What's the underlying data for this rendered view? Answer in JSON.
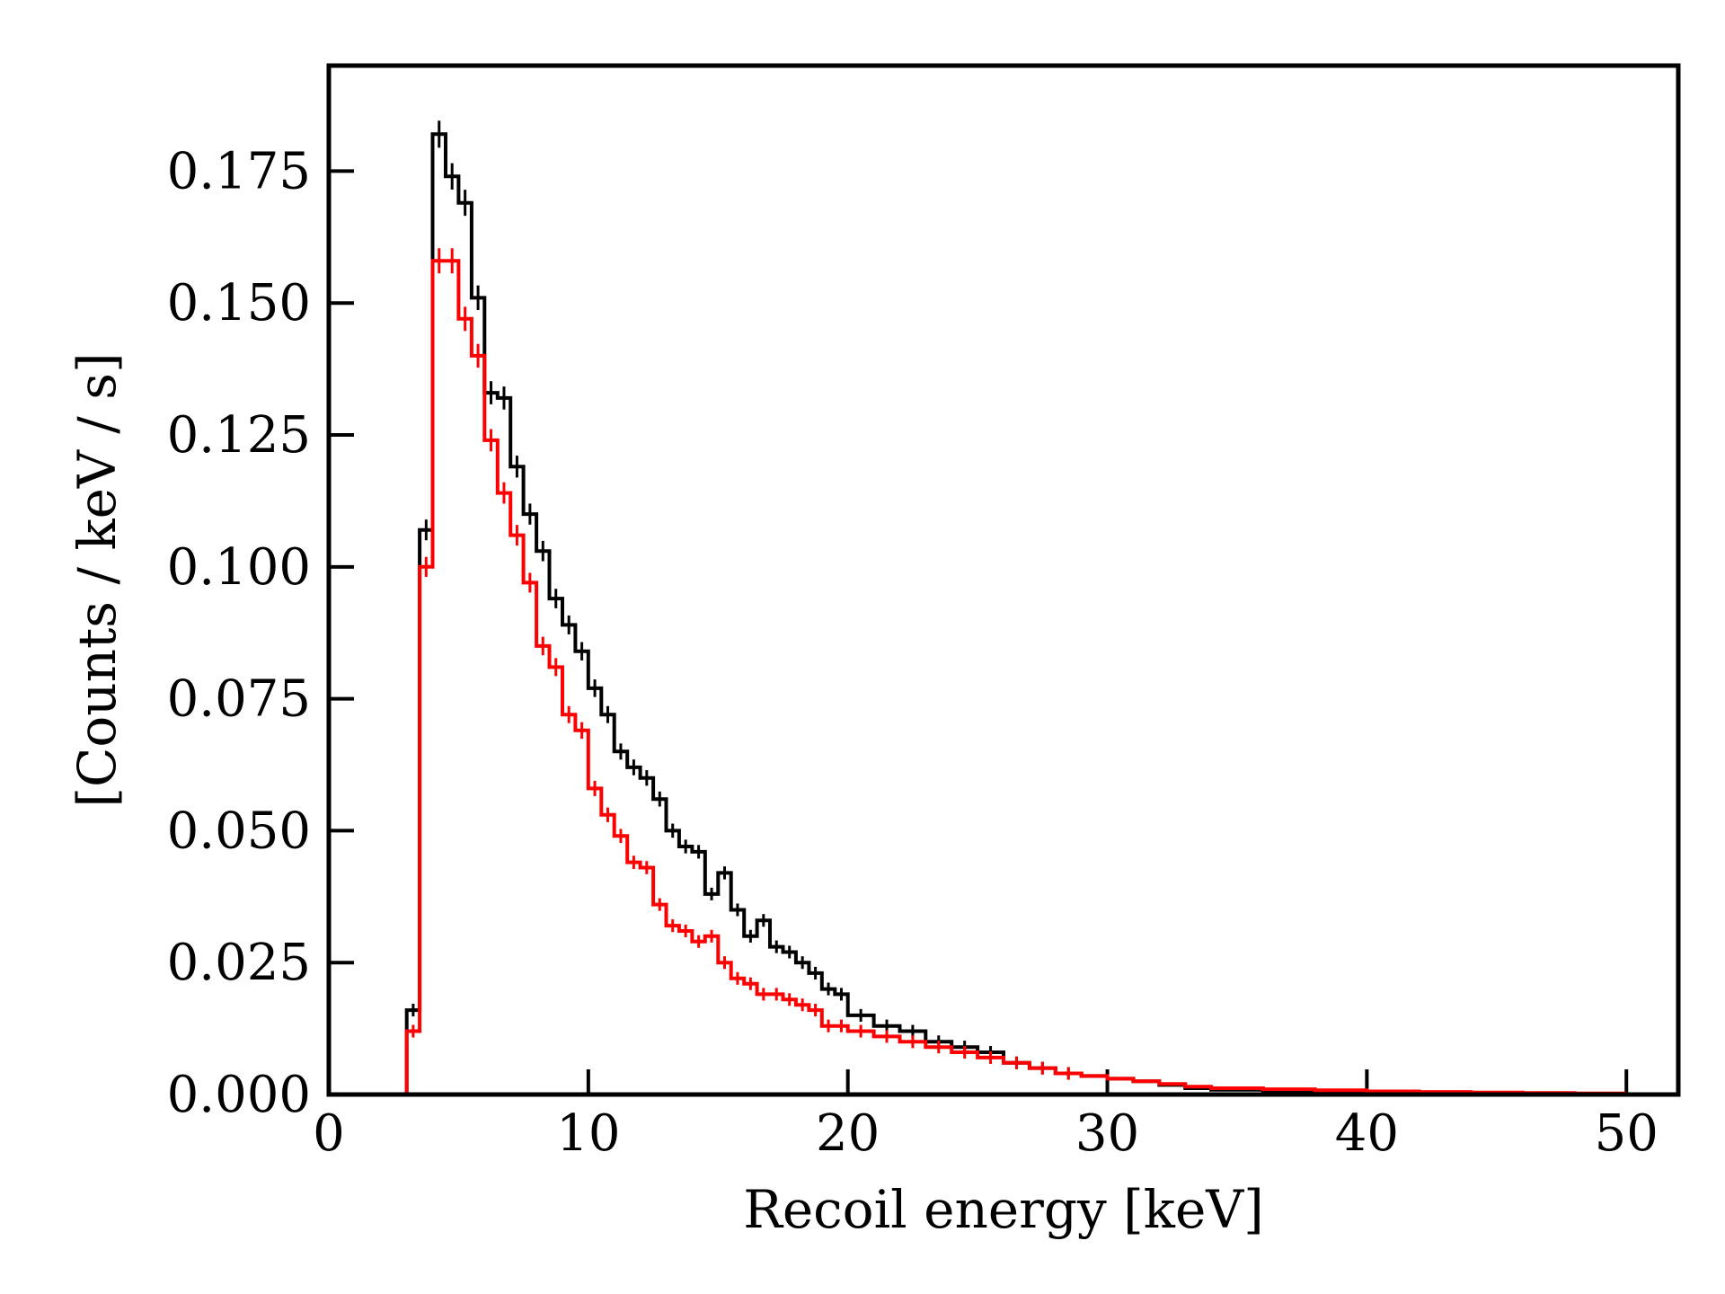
{
  "chart_data": {
    "type": "line",
    "style": "step-histogram",
    "title": "",
    "xlabel": "Recoil energy [keV]",
    "ylabel": "[Counts / keV / s]",
    "xlim": [
      0,
      52
    ],
    "ylim": [
      0,
      0.195
    ],
    "xticks": [
      0,
      10,
      20,
      30,
      40,
      50
    ],
    "xtick_labels": [
      "0",
      "10",
      "20",
      "30",
      "40",
      "50"
    ],
    "yticks": [
      0,
      0.025,
      0.05,
      0.075,
      0.1,
      0.125,
      0.15,
      0.175
    ],
    "ytick_labels": [
      "0.000",
      "0.025",
      "0.050",
      "0.075",
      "0.100",
      "0.125",
      "0.150",
      "0.175"
    ],
    "grid": false,
    "bin_edges": [
      3,
      3.5,
      4,
      4.5,
      5,
      5.5,
      6,
      6.5,
      7,
      7.5,
      8,
      8.5,
      9,
      9.5,
      10,
      10.5,
      11,
      11.5,
      12,
      12.5,
      13,
      13.5,
      14,
      14.5,
      15,
      15.5,
      16,
      16.5,
      17,
      17.5,
      18,
      18.5,
      19,
      19.5,
      20,
      21,
      22,
      23,
      24,
      25,
      26,
      27,
      28,
      29,
      30,
      31,
      32,
      33,
      34,
      36,
      38,
      40,
      42,
      44,
      46,
      48,
      50
    ],
    "series": [
      {
        "name": "black",
        "color": "#000000",
        "values": [
          0.016,
          0.107,
          0.182,
          0.174,
          0.169,
          0.151,
          0.133,
          0.132,
          0.119,
          0.11,
          0.103,
          0.094,
          0.089,
          0.084,
          0.077,
          0.072,
          0.065,
          0.062,
          0.06,
          0.056,
          0.05,
          0.047,
          0.046,
          0.038,
          0.042,
          0.035,
          0.03,
          0.033,
          0.028,
          0.027,
          0.025,
          0.023,
          0.02,
          0.019,
          0.015,
          0.013,
          0.012,
          0.01,
          0.009,
          0.008,
          0.006,
          0.005,
          0.004,
          0.0035,
          0.003,
          0.0025,
          0.0018,
          0.0012,
          0.0009,
          0.0007,
          0.0005,
          0.0004,
          0.0003,
          0.0002,
          0.0002,
          0.0001
        ]
      },
      {
        "name": "red",
        "color": "#ff0000",
        "values": [
          0.012,
          0.1,
          0.158,
          0.158,
          0.147,
          0.14,
          0.124,
          0.114,
          0.106,
          0.097,
          0.085,
          0.081,
          0.072,
          0.069,
          0.058,
          0.053,
          0.049,
          0.044,
          0.043,
          0.036,
          0.032,
          0.031,
          0.029,
          0.03,
          0.025,
          0.022,
          0.021,
          0.019,
          0.019,
          0.018,
          0.017,
          0.016,
          0.013,
          0.013,
          0.012,
          0.011,
          0.01,
          0.009,
          0.008,
          0.007,
          0.006,
          0.005,
          0.004,
          0.0035,
          0.003,
          0.0025,
          0.002,
          0.0015,
          0.0012,
          0.001,
          0.0008,
          0.0006,
          0.0005,
          0.0004,
          0.0003,
          0.0002
        ]
      }
    ]
  }
}
